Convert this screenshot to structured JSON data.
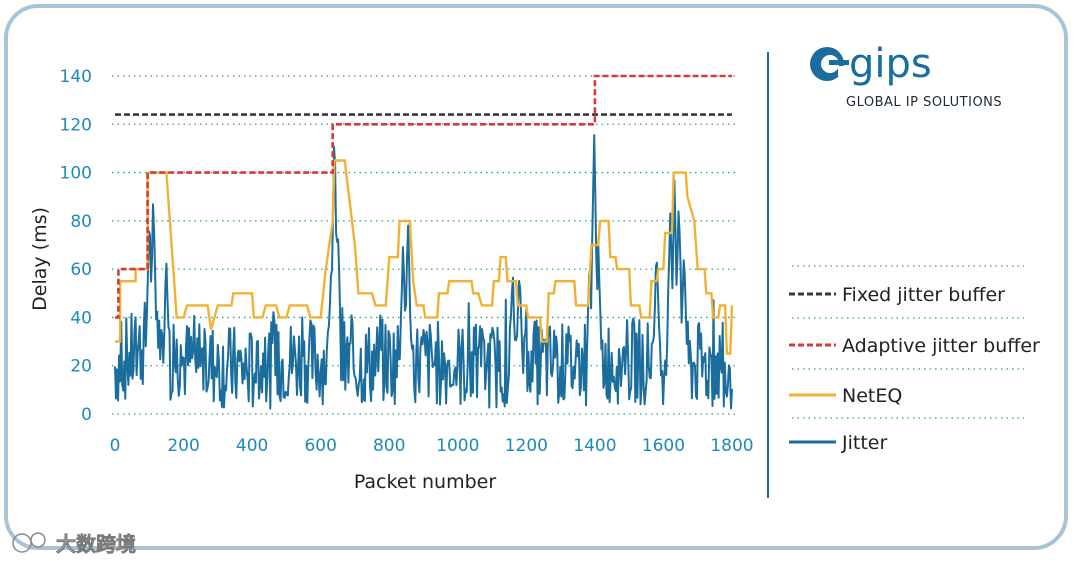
{
  "chart_data": {
    "type": "line",
    "xlabel": "Packet number",
    "ylabel": "Delay (ms)",
    "xlim": [
      0,
      1800
    ],
    "ylim": [
      0,
      140
    ],
    "x_ticks": [
      "0",
      "200",
      "400",
      "600",
      "800",
      "1000",
      "1200",
      "1400",
      "1600",
      "1800"
    ],
    "y_ticks": [
      "0",
      "20",
      "40",
      "60",
      "80",
      "100",
      "120",
      "140"
    ],
    "grid": "horizontal dotted",
    "legend_position": "right",
    "series": [
      {
        "name": "Fixed jitter buffer",
        "color": "#3a3a3a",
        "style": "dashed",
        "points": [
          [
            0,
            124
          ],
          [
            1800,
            124
          ]
        ]
      },
      {
        "name": "Adaptive jitter buffer",
        "color": "#d63a36",
        "style": "dashed",
        "points": [
          [
            0,
            40
          ],
          [
            10,
            40
          ],
          [
            10,
            60
          ],
          [
            95,
            60
          ],
          [
            95,
            100
          ],
          [
            635,
            100
          ],
          [
            635,
            120
          ],
          [
            1400,
            120
          ],
          [
            1400,
            140
          ],
          [
            1800,
            140
          ]
        ]
      },
      {
        "name": "NetEQ",
        "color": "#f0b234",
        "style": "step",
        "points": [
          [
            0,
            30
          ],
          [
            15,
            30
          ],
          [
            15,
            55
          ],
          [
            60,
            55
          ],
          [
            60,
            60
          ],
          [
            95,
            60
          ],
          [
            95,
            100
          ],
          [
            150,
            100
          ],
          [
            170,
            60
          ],
          [
            180,
            40
          ],
          [
            200,
            40
          ],
          [
            210,
            45
          ],
          [
            270,
            45
          ],
          [
            280,
            35
          ],
          [
            300,
            45
          ],
          [
            340,
            45
          ],
          [
            345,
            50
          ],
          [
            400,
            50
          ],
          [
            405,
            40
          ],
          [
            430,
            40
          ],
          [
            440,
            45
          ],
          [
            470,
            45
          ],
          [
            480,
            40
          ],
          [
            500,
            40
          ],
          [
            510,
            45
          ],
          [
            560,
            45
          ],
          [
            570,
            40
          ],
          [
            600,
            40
          ],
          [
            615,
            60
          ],
          [
            635,
            80
          ],
          [
            640,
            105
          ],
          [
            670,
            105
          ],
          [
            700,
            70
          ],
          [
            710,
            50
          ],
          [
            750,
            50
          ],
          [
            760,
            45
          ],
          [
            790,
            45
          ],
          [
            800,
            65
          ],
          [
            825,
            65
          ],
          [
            830,
            80
          ],
          [
            860,
            80
          ],
          [
            870,
            55
          ],
          [
            880,
            45
          ],
          [
            900,
            45
          ],
          [
            905,
            40
          ],
          [
            940,
            40
          ],
          [
            945,
            50
          ],
          [
            970,
            50
          ],
          [
            975,
            55
          ],
          [
            1040,
            55
          ],
          [
            1045,
            50
          ],
          [
            1060,
            50
          ],
          [
            1070,
            45
          ],
          [
            1100,
            45
          ],
          [
            1105,
            55
          ],
          [
            1120,
            55
          ],
          [
            1125,
            65
          ],
          [
            1140,
            65
          ],
          [
            1145,
            55
          ],
          [
            1170,
            55
          ],
          [
            1175,
            45
          ],
          [
            1200,
            45
          ],
          [
            1205,
            40
          ],
          [
            1240,
            40
          ],
          [
            1245,
            30
          ],
          [
            1260,
            30
          ],
          [
            1265,
            50
          ],
          [
            1280,
            50
          ],
          [
            1285,
            55
          ],
          [
            1340,
            55
          ],
          [
            1345,
            45
          ],
          [
            1380,
            45
          ],
          [
            1390,
            70
          ],
          [
            1410,
            70
          ],
          [
            1415,
            80
          ],
          [
            1440,
            80
          ],
          [
            1445,
            65
          ],
          [
            1460,
            65
          ],
          [
            1465,
            60
          ],
          [
            1500,
            60
          ],
          [
            1505,
            45
          ],
          [
            1530,
            45
          ],
          [
            1535,
            40
          ],
          [
            1560,
            40
          ],
          [
            1565,
            55
          ],
          [
            1580,
            55
          ],
          [
            1585,
            60
          ],
          [
            1600,
            60
          ],
          [
            1605,
            75
          ],
          [
            1625,
            75
          ],
          [
            1630,
            100
          ],
          [
            1665,
            100
          ],
          [
            1670,
            90
          ],
          [
            1690,
            80
          ],
          [
            1700,
            60
          ],
          [
            1720,
            60
          ],
          [
            1725,
            50
          ],
          [
            1740,
            50
          ],
          [
            1745,
            40
          ],
          [
            1760,
            40
          ],
          [
            1765,
            45
          ],
          [
            1780,
            45
          ],
          [
            1785,
            25
          ],
          [
            1795,
            25
          ],
          [
            1800,
            45
          ]
        ]
      },
      {
        "name": "Jitter",
        "color": "#1a6d9c",
        "style": "solid",
        "base": [
          [
            0,
            20
          ],
          [
            60,
            25
          ],
          [
            100,
            32
          ],
          [
            160,
            24
          ],
          [
            200,
            22
          ],
          [
            300,
            20
          ],
          [
            400,
            18
          ],
          [
            500,
            22
          ],
          [
            600,
            22
          ],
          [
            700,
            20
          ],
          [
            800,
            22
          ],
          [
            900,
            22
          ],
          [
            1000,
            20
          ],
          [
            1100,
            20
          ],
          [
            1200,
            22
          ],
          [
            1300,
            20
          ],
          [
            1400,
            22
          ],
          [
            1500,
            22
          ],
          [
            1600,
            22
          ],
          [
            1700,
            20
          ],
          [
            1800,
            20
          ]
        ],
        "spikes": [
          [
            100,
            83
          ],
          [
            112,
            92
          ],
          [
            150,
            65
          ],
          [
            630,
            60
          ],
          [
            640,
            118
          ],
          [
            650,
            80
          ],
          [
            840,
            70
          ],
          [
            855,
            78
          ],
          [
            1160,
            58
          ],
          [
            1180,
            62
          ],
          [
            1385,
            65
          ],
          [
            1398,
            118
          ],
          [
            1410,
            68
          ],
          [
            1580,
            70
          ],
          [
            1620,
            85
          ],
          [
            1632,
            95
          ],
          [
            1645,
            90
          ],
          [
            1660,
            70
          ]
        ]
      }
    ]
  },
  "brand": {
    "name": "gips",
    "tagline": "GLOBAL IP SOLUTIONS"
  },
  "watermark": "大数跨境"
}
